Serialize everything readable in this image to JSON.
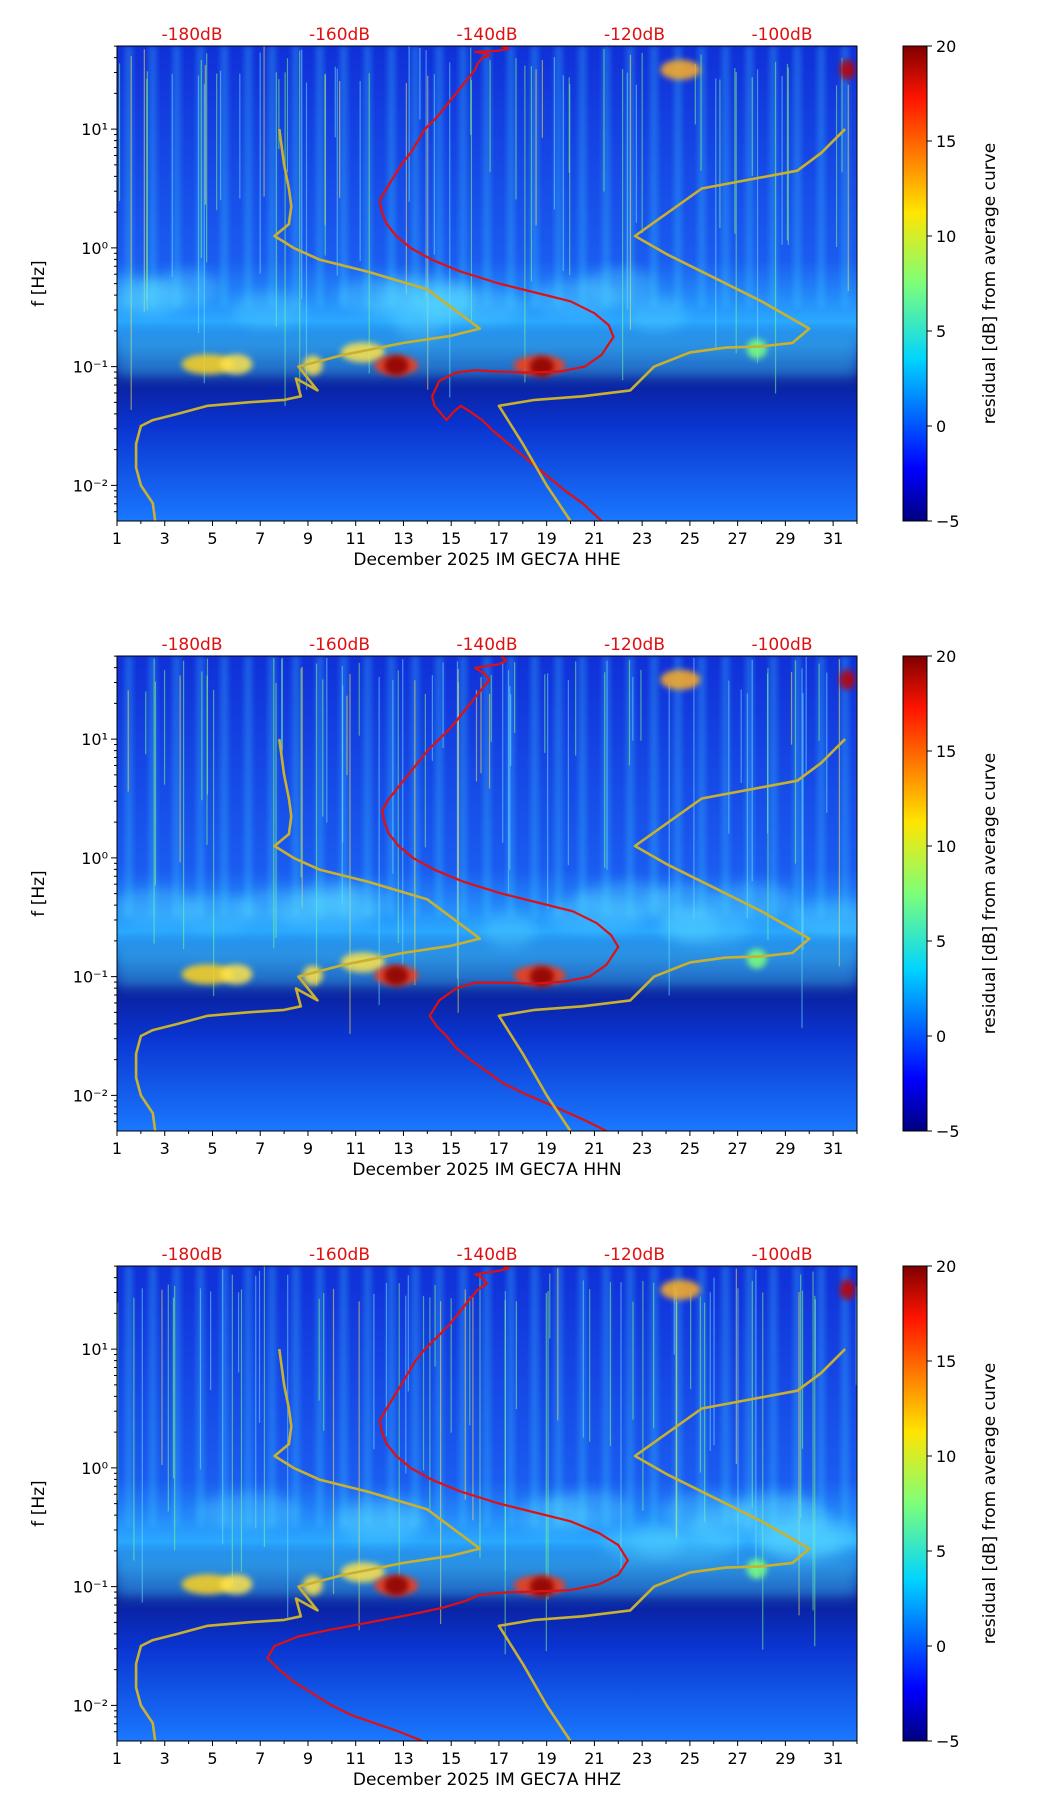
{
  "chart_data": [
    {
      "type": "heatmap",
      "xlabel": "December 2025 IM GEC7A  HHE",
      "ylabel": "f [Hz]",
      "x_ticks": [
        "1",
        "3",
        "5",
        "7",
        "9",
        "11",
        "13",
        "15",
        "17",
        "19",
        "21",
        "23",
        "25",
        "27",
        "29",
        "31"
      ],
      "xlim": [
        1,
        32
      ],
      "y_ticks": [
        "10⁻²",
        "10⁻¹",
        "10⁰",
        "10¹"
      ],
      "ylim_log10": [
        -2.3,
        1.7
      ],
      "top_axis_ticks": [
        "-180dB",
        "-160dB",
        "-140dB",
        "-120dB",
        "-100dB"
      ],
      "colorbar": {
        "label": "residual [dB] from average curve",
        "ticks": [
          "−5",
          "0",
          "5",
          "10",
          "15",
          "20"
        ],
        "range": [
          -5,
          20
        ]
      },
      "series": [
        {
          "color": "#e01010",
          "x": [
            21.3,
            20.5,
            19.8,
            19.2,
            18.6,
            18.0,
            17.4,
            16.8,
            16.3,
            15.8,
            15.4,
            15.1,
            14.8,
            14.6,
            14.3,
            14.2,
            14.5,
            15.2,
            16.0,
            16.8,
            18.2,
            19.6,
            20.6,
            21.3,
            21.8,
            21.6,
            21.0,
            20.0,
            18.6,
            17.0,
            15.4,
            14.2,
            13.3,
            12.7,
            12.3,
            12.1,
            12.0,
            12.3,
            12.6,
            12.9,
            13.3,
            13.6,
            13.9,
            14.4,
            14.8,
            15.2,
            15.6,
            16.0,
            16.1,
            16.3,
            16.6,
            16.4,
            16.0,
            17.0,
            17.4,
            17.1
          ],
          "y": [
            -2.3,
            -2.15,
            -2.05,
            -1.95,
            -1.85,
            -1.75,
            -1.65,
            -1.55,
            -1.45,
            -1.38,
            -1.33,
            -1.38,
            -1.45,
            -1.4,
            -1.33,
            -1.25,
            -1.12,
            -1.05,
            -1.03,
            -1.04,
            -1.05,
            -1.04,
            -1.0,
            -0.9,
            -0.75,
            -0.65,
            -0.55,
            -0.45,
            -0.38,
            -0.3,
            -0.2,
            -0.1,
            0.0,
            0.1,
            0.2,
            0.3,
            0.4,
            0.5,
            0.6,
            0.7,
            0.8,
            0.9,
            1.0,
            1.1,
            1.2,
            1.3,
            1.4,
            1.5,
            1.55,
            1.6,
            1.62,
            1.64,
            1.65,
            1.66,
            1.68,
            1.7
          ]
        },
        {
          "color": "#c8b030",
          "x": [
            2.6,
            2.5,
            2.0,
            1.8,
            1.8,
            2.0,
            2.5,
            3.5,
            4.8,
            6.5,
            8.0,
            8.7,
            8.5,
            9.4,
            8.6,
            10.5,
            13.0,
            15.0,
            16.2,
            14.0,
            11.5,
            9.5,
            8.4,
            7.6,
            8.2,
            8.3,
            8.2,
            8.0,
            7.8
          ],
          "y": [
            -2.3,
            -2.15,
            -2.0,
            -1.85,
            -1.65,
            -1.5,
            -1.45,
            -1.4,
            -1.33,
            -1.3,
            -1.28,
            -1.25,
            -1.1,
            -1.2,
            -1.0,
            -0.9,
            -0.8,
            -0.74,
            -0.68,
            -0.35,
            -0.2,
            -0.1,
            0.0,
            0.1,
            0.2,
            0.35,
            0.5,
            0.7,
            1.0
          ]
        },
        {
          "color": "#c8b030",
          "x": [
            20.0,
            19.0,
            18.0,
            17.0,
            18.5,
            20.5,
            22.5,
            23.5,
            25.0,
            26.5,
            28.0,
            29.3,
            30.0,
            28.0,
            26.0,
            24.0,
            22.7,
            25.5,
            29.5,
            30.5,
            31.5
          ],
          "y": [
            -2.3,
            -2.0,
            -1.65,
            -1.33,
            -1.28,
            -1.25,
            -1.2,
            -1.0,
            -0.88,
            -0.84,
            -0.83,
            -0.8,
            -0.68,
            -0.45,
            -0.25,
            -0.05,
            0.1,
            0.5,
            0.65,
            0.8,
            1.0
          ]
        }
      ]
    },
    {
      "type": "heatmap",
      "xlabel": "December 2025 IM GEC7A  HHN",
      "ylabel": "f [Hz]",
      "x_ticks": [
        "1",
        "3",
        "5",
        "7",
        "9",
        "11",
        "13",
        "15",
        "17",
        "19",
        "21",
        "23",
        "25",
        "27",
        "29",
        "31"
      ],
      "xlim": [
        1,
        32
      ],
      "y_ticks": [
        "10⁻²",
        "10⁻¹",
        "10⁰",
        "10¹"
      ],
      "ylim_log10": [
        -2.3,
        1.7
      ],
      "top_axis_ticks": [
        "-180dB",
        "-160dB",
        "-140dB",
        "-120dB",
        "-100dB"
      ],
      "colorbar": {
        "label": "residual [dB] from average curve",
        "ticks": [
          "−5",
          "0",
          "5",
          "10",
          "15",
          "20"
        ],
        "range": [
          -5,
          20
        ]
      },
      "series": [
        {
          "color": "#e01010",
          "x": [
            21.5,
            20.5,
            19.6,
            18.8,
            18.0,
            17.2,
            16.5,
            15.8,
            15.2,
            14.8,
            14.4,
            14.1,
            14.5,
            15.2,
            16.0,
            17.0,
            18.4,
            19.8,
            20.8,
            21.5,
            22.0,
            21.7,
            21.1,
            20.1,
            18.7,
            17.1,
            15.5,
            14.3,
            13.4,
            12.8,
            12.4,
            12.2,
            12.1,
            12.4,
            12.8,
            13.2,
            13.6,
            14.0,
            14.5,
            15.0,
            15.4,
            15.8,
            16.2,
            16.6,
            16.4,
            16.0,
            17.0,
            17.3,
            17.1
          ],
          "y": [
            -2.3,
            -2.2,
            -2.12,
            -2.05,
            -1.98,
            -1.9,
            -1.8,
            -1.7,
            -1.6,
            -1.5,
            -1.42,
            -1.33,
            -1.2,
            -1.1,
            -1.05,
            -1.05,
            -1.06,
            -1.04,
            -1.0,
            -0.9,
            -0.75,
            -0.65,
            -0.55,
            -0.45,
            -0.38,
            -0.3,
            -0.2,
            -0.1,
            0.0,
            0.1,
            0.2,
            0.3,
            0.4,
            0.5,
            0.6,
            0.7,
            0.8,
            0.9,
            1.0,
            1.1,
            1.2,
            1.3,
            1.4,
            1.5,
            1.55,
            1.6,
            1.63,
            1.66,
            1.7
          ]
        },
        {
          "color": "#c8b030",
          "x": [
            2.6,
            2.5,
            2.0,
            1.8,
            1.8,
            2.0,
            2.5,
            3.5,
            4.8,
            6.5,
            8.0,
            8.7,
            8.5,
            9.4,
            8.6,
            10.5,
            13.0,
            15.0,
            16.2,
            14.0,
            11.5,
            9.5,
            8.4,
            7.6,
            8.2,
            8.3,
            8.2,
            8.0,
            7.8
          ],
          "y": [
            -2.3,
            -2.15,
            -2.0,
            -1.85,
            -1.65,
            -1.5,
            -1.45,
            -1.4,
            -1.33,
            -1.3,
            -1.28,
            -1.25,
            -1.1,
            -1.2,
            -1.0,
            -0.9,
            -0.8,
            -0.74,
            -0.68,
            -0.35,
            -0.2,
            -0.1,
            0.0,
            0.1,
            0.2,
            0.35,
            0.5,
            0.7,
            1.0
          ]
        },
        {
          "color": "#c8b030",
          "x": [
            20.0,
            19.0,
            18.0,
            17.0,
            18.5,
            20.5,
            22.5,
            23.5,
            25.0,
            26.5,
            28.0,
            29.3,
            30.0,
            28.0,
            26.0,
            24.0,
            22.7,
            25.5,
            29.5,
            30.5,
            31.5
          ],
          "y": [
            -2.3,
            -2.0,
            -1.65,
            -1.33,
            -1.28,
            -1.25,
            -1.2,
            -1.0,
            -0.88,
            -0.84,
            -0.83,
            -0.8,
            -0.68,
            -0.45,
            -0.25,
            -0.05,
            0.1,
            0.5,
            0.65,
            0.8,
            1.0
          ]
        }
      ]
    },
    {
      "type": "heatmap",
      "xlabel": "December 2025 IM GEC7A  HHZ",
      "ylabel": "f [Hz]",
      "x_ticks": [
        "1",
        "3",
        "5",
        "7",
        "9",
        "11",
        "13",
        "15",
        "17",
        "19",
        "21",
        "23",
        "25",
        "27",
        "29",
        "31"
      ],
      "xlim": [
        1,
        32
      ],
      "y_ticks": [
        "10⁻²",
        "10⁻¹",
        "10⁰",
        "10¹"
      ],
      "ylim_log10": [
        -2.3,
        1.7
      ],
      "top_axis_ticks": [
        "-180dB",
        "-160dB",
        "-140dB",
        "-120dB",
        "-100dB"
      ],
      "colorbar": {
        "label": "residual [dB] from average curve",
        "ticks": [
          "−5",
          "0",
          "5",
          "10",
          "15",
          "20"
        ],
        "range": [
          -5,
          20
        ]
      },
      "series": [
        {
          "color": "#e01010",
          "x": [
            13.8,
            12.8,
            11.8,
            10.8,
            10.0,
            9.2,
            8.4,
            7.8,
            7.3,
            7.6,
            8.6,
            10.0,
            11.6,
            13.2,
            14.6,
            15.6,
            16.2,
            17.2,
            18.6,
            20.0,
            21.2,
            22.0,
            22.4,
            22.0,
            21.2,
            20.0,
            18.6,
            17.0,
            15.4,
            14.2,
            13.3,
            12.7,
            12.3,
            12.1,
            12.0,
            12.3,
            12.6,
            12.9,
            13.2,
            13.5,
            13.9,
            14.4,
            14.9,
            15.3,
            15.7,
            16.1,
            16.5,
            16.3,
            16.0,
            17.0,
            17.4,
            17.2
          ],
          "y": [
            -2.3,
            -2.22,
            -2.15,
            -2.08,
            -2.0,
            -1.9,
            -1.8,
            -1.7,
            -1.6,
            -1.5,
            -1.42,
            -1.36,
            -1.3,
            -1.24,
            -1.18,
            -1.12,
            -1.07,
            -1.05,
            -1.04,
            -1.03,
            -0.98,
            -0.9,
            -0.78,
            -0.65,
            -0.55,
            -0.45,
            -0.38,
            -0.3,
            -0.2,
            -0.1,
            0.0,
            0.1,
            0.2,
            0.3,
            0.4,
            0.5,
            0.6,
            0.7,
            0.8,
            0.9,
            1.0,
            1.1,
            1.2,
            1.3,
            1.4,
            1.5,
            1.55,
            1.6,
            1.63,
            1.66,
            1.68,
            1.7
          ]
        },
        {
          "color": "#c8b030",
          "x": [
            2.6,
            2.5,
            2.0,
            1.8,
            1.8,
            2.0,
            2.5,
            3.5,
            4.8,
            6.5,
            8.0,
            8.7,
            8.5,
            9.4,
            8.6,
            10.5,
            13.0,
            15.0,
            16.2,
            14.0,
            11.5,
            9.5,
            8.4,
            7.6,
            8.2,
            8.3,
            8.2,
            8.0,
            7.8
          ],
          "y": [
            -2.3,
            -2.15,
            -2.0,
            -1.85,
            -1.65,
            -1.5,
            -1.45,
            -1.4,
            -1.33,
            -1.3,
            -1.28,
            -1.25,
            -1.1,
            -1.2,
            -1.0,
            -0.9,
            -0.8,
            -0.74,
            -0.68,
            -0.35,
            -0.2,
            -0.1,
            0.0,
            0.1,
            0.2,
            0.35,
            0.5,
            0.7,
            1.0
          ]
        },
        {
          "color": "#c8b030",
          "x": [
            20.0,
            19.0,
            18.0,
            17.0,
            18.5,
            20.5,
            22.5,
            23.5,
            25.0,
            26.5,
            28.0,
            29.3,
            30.0,
            28.0,
            26.0,
            24.0,
            22.7,
            25.5,
            29.5,
            30.5,
            31.5
          ],
          "y": [
            -2.3,
            -2.0,
            -1.65,
            -1.33,
            -1.28,
            -1.25,
            -1.2,
            -1.0,
            -0.88,
            -0.84,
            -0.83,
            -0.8,
            -0.68,
            -0.45,
            -0.25,
            -0.05,
            0.1,
            0.5,
            0.65,
            0.8,
            1.0
          ]
        }
      ]
    }
  ]
}
